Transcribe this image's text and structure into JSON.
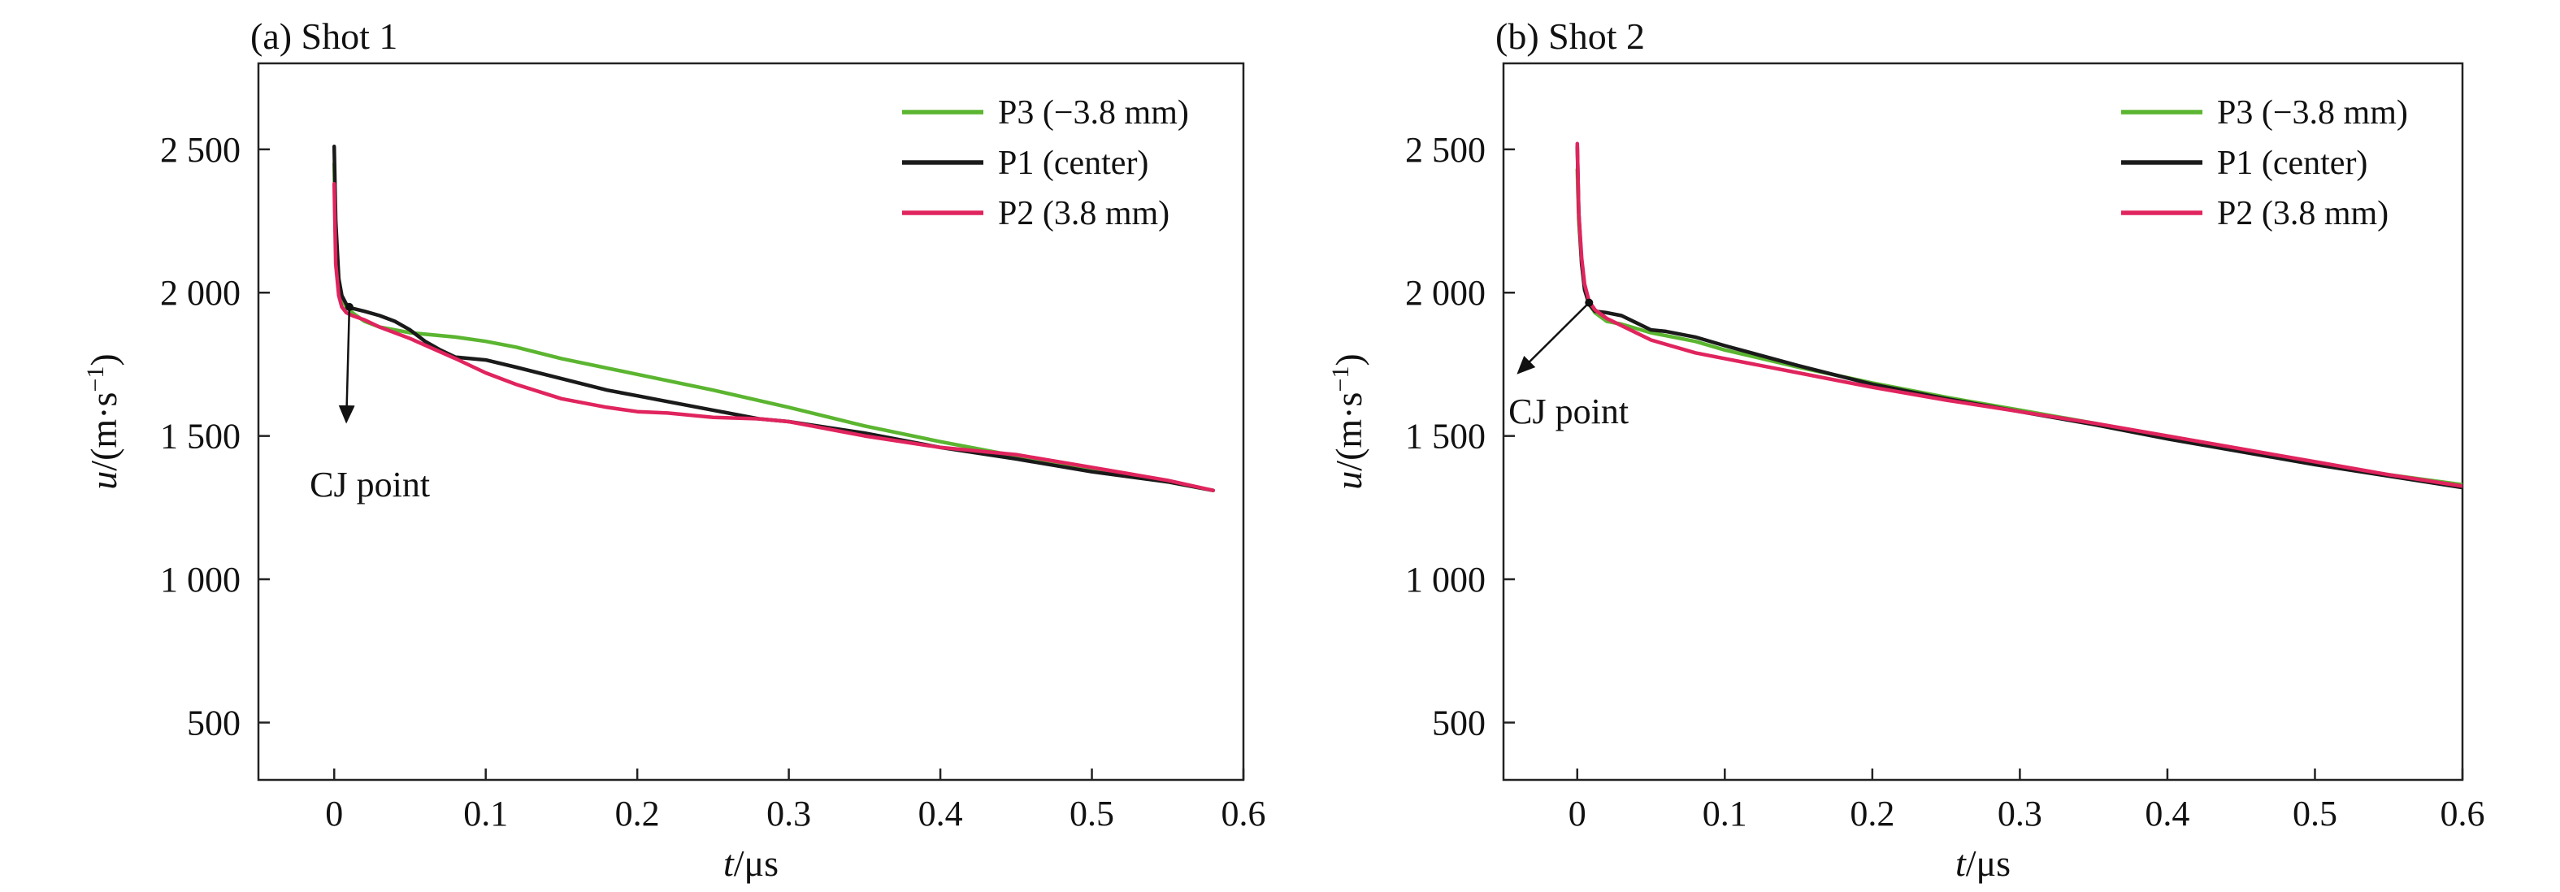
{
  "chart_data": [
    {
      "type": "line",
      "panel_label": "(a) Shot 1",
      "xlabel_var": "t",
      "xlabel_unit": "/μs",
      "ylabel_var": "u",
      "ylabel_unit": "/(m·s",
      "ylabel_exp": "−1",
      "ylabel_close": ")",
      "xlim": [
        -0.05,
        0.6
      ],
      "ylim": [
        300,
        2800
      ],
      "x_ticks": [
        0,
        0.1,
        0.2,
        0.3,
        0.4,
        0.5,
        0.6
      ],
      "x_tick_labels": [
        "0",
        "0.1",
        "0.2",
        "0.3",
        "0.4",
        "0.5",
        "0.6"
      ],
      "y_ticks": [
        500,
        1000,
        1500,
        2000,
        2500
      ],
      "y_tick_labels": [
        "500",
        "1 000",
        "1 500",
        "2 000",
        "2 500"
      ],
      "grid": false,
      "legend_position": "top-right",
      "annotation": {
        "text": "CJ point",
        "point": [
          0.01,
          1950
        ],
        "label_at": [
          0.008,
          1550
        ]
      },
      "series": [
        {
          "name": "P3 (−3.8 mm)",
          "color": "#5bb530",
          "x": [
            0.0,
            0.001,
            0.003,
            0.005,
            0.008,
            0.012,
            0.02,
            0.03,
            0.05,
            0.08,
            0.1,
            0.12,
            0.15,
            0.2,
            0.25,
            0.3,
            0.35,
            0.4,
            0.45,
            0.5,
            0.55,
            0.58
          ],
          "y": [
            2450,
            2150,
            2020,
            1980,
            1950,
            1930,
            1900,
            1880,
            1860,
            1845,
            1830,
            1810,
            1770,
            1715,
            1660,
            1600,
            1535,
            1480,
            1430,
            1385,
            1340,
            1310
          ]
        },
        {
          "name": "P1 (center)",
          "color": "#1a1a1a",
          "x": [
            0.0,
            0.001,
            0.003,
            0.005,
            0.008,
            0.012,
            0.02,
            0.03,
            0.04,
            0.05,
            0.06,
            0.07,
            0.08,
            0.1,
            0.12,
            0.15,
            0.18,
            0.2,
            0.22,
            0.25,
            0.28,
            0.3,
            0.35,
            0.4,
            0.45,
            0.5,
            0.55,
            0.58
          ],
          "y": [
            2510,
            2250,
            2050,
            1990,
            1960,
            1945,
            1935,
            1920,
            1900,
            1870,
            1830,
            1800,
            1775,
            1765,
            1740,
            1700,
            1660,
            1640,
            1620,
            1590,
            1560,
            1550,
            1510,
            1460,
            1420,
            1375,
            1340,
            1310
          ]
        },
        {
          "name": "P2 (3.8 mm)",
          "color": "#e0245e",
          "x": [
            0.0,
            0.001,
            0.003,
            0.005,
            0.008,
            0.012,
            0.02,
            0.03,
            0.05,
            0.08,
            0.1,
            0.12,
            0.15,
            0.18,
            0.2,
            0.22,
            0.25,
            0.28,
            0.3,
            0.35,
            0.4,
            0.45,
            0.5,
            0.55,
            0.58
          ],
          "y": [
            2380,
            2100,
            1990,
            1950,
            1930,
            1920,
            1905,
            1880,
            1840,
            1770,
            1720,
            1680,
            1630,
            1600,
            1585,
            1580,
            1565,
            1560,
            1550,
            1500,
            1460,
            1435,
            1390,
            1345,
            1310
          ]
        }
      ]
    },
    {
      "type": "line",
      "panel_label": "(b) Shot 2",
      "xlabel_var": "t",
      "xlabel_unit": "/μs",
      "ylabel_var": "u",
      "ylabel_unit": "/(m·s",
      "ylabel_exp": "−1",
      "ylabel_close": ")",
      "xlim": [
        -0.05,
        0.6
      ],
      "ylim": [
        300,
        2800
      ],
      "x_ticks": [
        0,
        0.1,
        0.2,
        0.3,
        0.4,
        0.5,
        0.6
      ],
      "x_tick_labels": [
        "0",
        "0.1",
        "0.2",
        "0.3",
        "0.4",
        "0.5",
        "0.6"
      ],
      "y_ticks": [
        500,
        1000,
        1500,
        2000,
        2500
      ],
      "y_tick_labels": [
        "500",
        "1 000",
        "1 500",
        "2 000",
        "2 500"
      ],
      "grid": false,
      "legend_position": "top-right",
      "annotation": {
        "text": "CJ point",
        "point": [
          0.008,
          1965
        ],
        "label_at": [
          -0.04,
          1720
        ]
      },
      "series": [
        {
          "name": "P3 (−3.8 mm)",
          "color": "#5bb530",
          "x": [
            0.0,
            0.001,
            0.003,
            0.005,
            0.008,
            0.012,
            0.02,
            0.03,
            0.05,
            0.08,
            0.1,
            0.15,
            0.2,
            0.25,
            0.3,
            0.35,
            0.4,
            0.45,
            0.5,
            0.55,
            0.6
          ],
          "y": [
            2430,
            2250,
            2100,
            2020,
            1960,
            1930,
            1900,
            1890,
            1860,
            1830,
            1800,
            1740,
            1685,
            1635,
            1590,
            1545,
            1495,
            1450,
            1405,
            1365,
            1330
          ]
        },
        {
          "name": "P1 (center)",
          "color": "#1a1a1a",
          "x": [
            0.0,
            0.001,
            0.003,
            0.005,
            0.008,
            0.012,
            0.02,
            0.03,
            0.04,
            0.05,
            0.06,
            0.08,
            0.1,
            0.15,
            0.2,
            0.25,
            0.3,
            0.35,
            0.4,
            0.45,
            0.5,
            0.55,
            0.6
          ],
          "y": [
            2510,
            2280,
            2100,
            2010,
            1960,
            1935,
            1930,
            1920,
            1895,
            1870,
            1865,
            1845,
            1815,
            1745,
            1680,
            1630,
            1585,
            1540,
            1490,
            1445,
            1400,
            1360,
            1320
          ]
        },
        {
          "name": "P2 (3.8 mm)",
          "color": "#e0245e",
          "x": [
            0.0,
            0.001,
            0.003,
            0.005,
            0.008,
            0.012,
            0.02,
            0.03,
            0.05,
            0.08,
            0.1,
            0.15,
            0.2,
            0.25,
            0.3,
            0.35,
            0.4,
            0.45,
            0.5,
            0.55,
            0.6
          ],
          "y": [
            2520,
            2280,
            2120,
            2030,
            1970,
            1940,
            1910,
            1885,
            1835,
            1790,
            1770,
            1720,
            1670,
            1625,
            1585,
            1545,
            1500,
            1455,
            1410,
            1365,
            1325
          ]
        }
      ]
    }
  ]
}
